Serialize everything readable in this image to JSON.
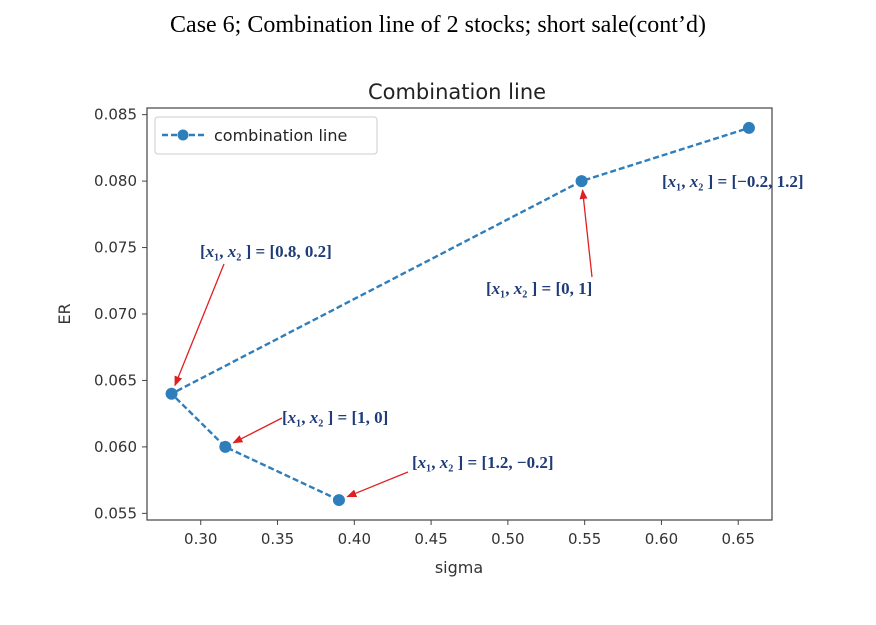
{
  "slide": {
    "title": "Case 6; Combination line of 2 stocks; short sale(cont’d)"
  },
  "colors": {
    "series": "#2f7ebc",
    "arrow": "#e02020",
    "annotation_text": "#1f3c78"
  },
  "chart_data": {
    "type": "line",
    "title": "Combination line",
    "xlabel": "sigma",
    "ylabel": "ER",
    "xlim": [
      0.265,
      0.672
    ],
    "ylim": [
      0.0545,
      0.0855
    ],
    "xticks": [
      "0.30",
      "0.35",
      "0.40",
      "0.45",
      "0.50",
      "0.55",
      "0.60",
      "0.65"
    ],
    "yticks": [
      "0.055",
      "0.060",
      "0.065",
      "0.070",
      "0.075",
      "0.080",
      "0.085"
    ],
    "grid": false,
    "legend": {
      "placement": "top-left",
      "entries": [
        "combination line"
      ]
    },
    "series": [
      {
        "name": "combination line",
        "style": "dashed line with circle markers",
        "points": [
          {
            "x": 0.39,
            "y": 0.056
          },
          {
            "x": 0.316,
            "y": 0.06
          },
          {
            "x": 0.281,
            "y": 0.064
          },
          {
            "x": 0.548,
            "y": 0.08
          },
          {
            "x": 0.657,
            "y": 0.084
          }
        ]
      }
    ],
    "annotations": [
      {
        "v1": "0.8",
        "v2": "0.2",
        "point": {
          "x": 0.281,
          "y": 0.064
        }
      },
      {
        "v1": "0",
        "v2": "1",
        "point": {
          "x": 0.548,
          "y": 0.08
        }
      },
      {
        "v1": "−0.2",
        "v2": "1.2",
        "point": null
      },
      {
        "v1": "1",
        "v2": "0",
        "point": {
          "x": 0.316,
          "y": 0.06
        }
      },
      {
        "v1": "1.2",
        "v2": "−0.2",
        "point": {
          "x": 0.39,
          "y": 0.056
        }
      }
    ]
  }
}
